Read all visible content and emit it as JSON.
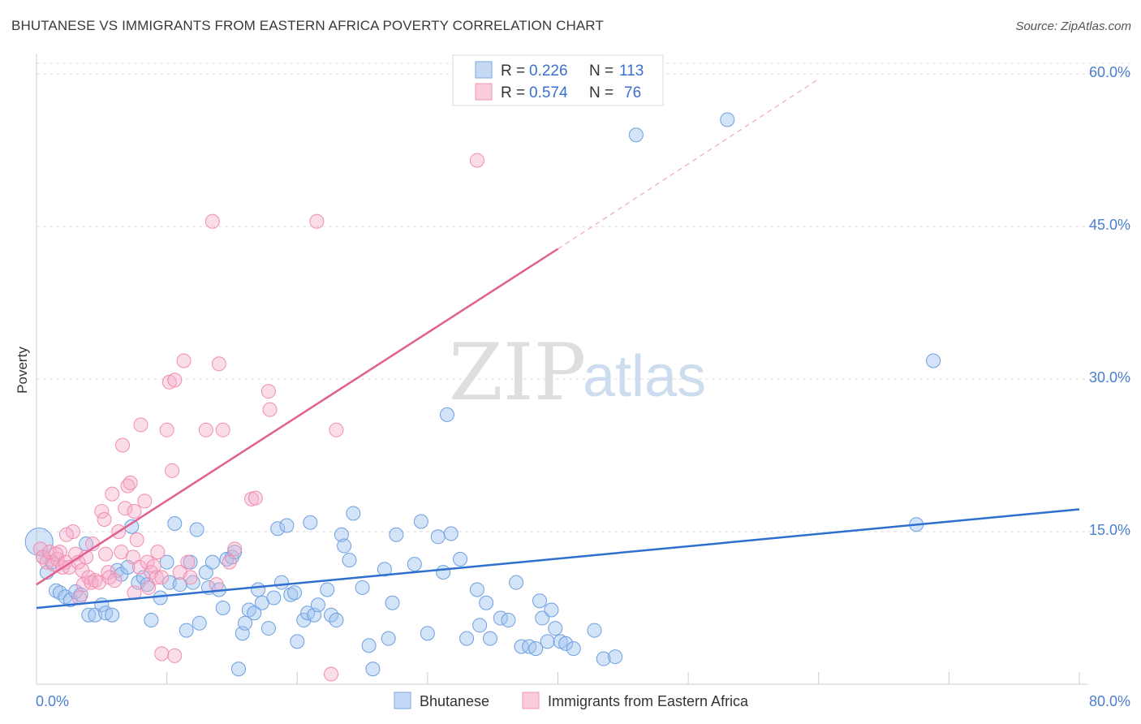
{
  "header": {
    "title": "BHUTANESE VS IMMIGRANTS FROM EASTERN AFRICA POVERTY CORRELATION CHART",
    "source": "Source: ZipAtlas.com"
  },
  "watermark": {
    "zip": "ZIP",
    "atlas": "atlas"
  },
  "legend": {
    "rows": [
      {
        "r_label": "R =",
        "r_value": "0.226",
        "n_label": "N =",
        "n_value": "113",
        "color": "#6d9fe0"
      },
      {
        "r_label": "R =",
        "r_value": "0.574",
        "n_label": "N =",
        "n_value": "76",
        "color": "#f08cb0"
      }
    ]
  },
  "bottom_legend": [
    {
      "label": "Bhutanese",
      "color": "#6d9fe0"
    },
    {
      "label": "Immigrants from Eastern Africa",
      "color": "#f08cb0"
    }
  ],
  "chart_data": {
    "type": "scatter",
    "ylabel": "Poverty",
    "xlabel": "",
    "xlim": [
      0,
      80
    ],
    "ylim": [
      0,
      62
    ],
    "x_ticks": [
      "0.0%",
      "80.0%"
    ],
    "y_ticks": [
      {
        "value": 15,
        "label": "15.0%"
      },
      {
        "value": 30,
        "label": "30.0%"
      },
      {
        "value": 45,
        "label": "45.0%"
      },
      {
        "value": 60,
        "label": "60.0%"
      }
    ],
    "grid": true,
    "series": [
      {
        "name": "Bhutanese",
        "color": "#6d9fe0",
        "trend": {
          "x0": 0,
          "y0": 7.5,
          "x1": 80,
          "y1": 17.2
        },
        "points": [
          [
            0.2,
            14.0
          ],
          [
            0.5,
            12.5
          ],
          [
            0.8,
            11.0
          ],
          [
            1.2,
            12.0
          ],
          [
            1.5,
            9.2
          ],
          [
            1.8,
            9.0
          ],
          [
            2.2,
            8.6
          ],
          [
            2.6,
            8.3
          ],
          [
            3.0,
            9.1
          ],
          [
            3.4,
            8.8
          ],
          [
            3.8,
            13.8
          ],
          [
            4.0,
            6.8
          ],
          [
            4.5,
            6.8
          ],
          [
            5.0,
            7.8
          ],
          [
            5.3,
            7.0
          ],
          [
            5.8,
            6.8
          ],
          [
            6.2,
            11.2
          ],
          [
            6.5,
            10.8
          ],
          [
            7.0,
            11.5
          ],
          [
            7.3,
            15.5
          ],
          [
            7.8,
            10.0
          ],
          [
            8.2,
            10.5
          ],
          [
            8.5,
            9.8
          ],
          [
            8.8,
            6.3
          ],
          [
            9.5,
            8.5
          ],
          [
            10.0,
            12.0
          ],
          [
            10.2,
            10.0
          ],
          [
            10.6,
            15.8
          ],
          [
            11.0,
            9.8
          ],
          [
            11.5,
            5.3
          ],
          [
            11.8,
            12.0
          ],
          [
            12.0,
            10.0
          ],
          [
            12.3,
            15.2
          ],
          [
            12.5,
            6.0
          ],
          [
            13.0,
            11.0
          ],
          [
            13.2,
            9.5
          ],
          [
            13.5,
            12.0
          ],
          [
            14.0,
            9.3
          ],
          [
            14.3,
            7.5
          ],
          [
            14.6,
            12.3
          ],
          [
            15.0,
            12.5
          ],
          [
            15.2,
            13.0
          ],
          [
            15.5,
            1.5
          ],
          [
            15.8,
            5.0
          ],
          [
            16.0,
            6.0
          ],
          [
            16.3,
            7.3
          ],
          [
            16.7,
            7.0
          ],
          [
            17.0,
            9.3
          ],
          [
            17.3,
            8.0
          ],
          [
            17.8,
            5.5
          ],
          [
            18.2,
            8.5
          ],
          [
            18.5,
            15.3
          ],
          [
            18.8,
            10.0
          ],
          [
            19.2,
            15.6
          ],
          [
            19.5,
            8.8
          ],
          [
            19.8,
            9.0
          ],
          [
            20.0,
            4.2
          ],
          [
            20.5,
            6.3
          ],
          [
            20.8,
            7.0
          ],
          [
            21.0,
            15.9
          ],
          [
            21.3,
            6.8
          ],
          [
            21.6,
            7.8
          ],
          [
            22.3,
            9.3
          ],
          [
            22.6,
            6.8
          ],
          [
            23.0,
            6.3
          ],
          [
            23.4,
            14.7
          ],
          [
            23.6,
            13.6
          ],
          [
            24.0,
            12.2
          ],
          [
            24.3,
            16.8
          ],
          [
            25.0,
            9.5
          ],
          [
            25.5,
            3.8
          ],
          [
            25.8,
            1.5
          ],
          [
            26.7,
            11.3
          ],
          [
            27.0,
            4.5
          ],
          [
            27.3,
            8.0
          ],
          [
            27.6,
            14.7
          ],
          [
            29.5,
            16.0
          ],
          [
            29.0,
            11.8
          ],
          [
            30.0,
            5.0
          ],
          [
            30.8,
            14.5
          ],
          [
            31.2,
            11.0
          ],
          [
            31.5,
            26.5
          ],
          [
            31.8,
            14.8
          ],
          [
            32.5,
            12.3
          ],
          [
            33.0,
            4.5
          ],
          [
            33.8,
            9.3
          ],
          [
            34.0,
            5.8
          ],
          [
            34.5,
            8.0
          ],
          [
            34.8,
            4.5
          ],
          [
            35.6,
            6.5
          ],
          [
            36.2,
            6.3
          ],
          [
            36.8,
            10.0
          ],
          [
            37.2,
            3.7
          ],
          [
            37.8,
            3.7
          ],
          [
            38.3,
            3.5
          ],
          [
            38.6,
            8.2
          ],
          [
            38.8,
            6.5
          ],
          [
            39.2,
            4.2
          ],
          [
            39.5,
            7.3
          ],
          [
            39.8,
            5.5
          ],
          [
            40.2,
            4.2
          ],
          [
            40.6,
            4.0
          ],
          [
            41.2,
            3.5
          ],
          [
            42.8,
            5.3
          ],
          [
            43.5,
            2.5
          ],
          [
            44.4,
            2.7
          ],
          [
            46.0,
            54.0
          ],
          [
            53.0,
            55.5
          ],
          [
            68.8,
            31.8
          ],
          [
            67.5,
            15.7
          ]
        ]
      },
      {
        "name": "Immigrants from Eastern Africa",
        "color": "#f08cb0",
        "trend": {
          "x0": 0,
          "y0": 9.8,
          "x1": 40,
          "y1": 42.8
        },
        "trend_dashed": {
          "x0": 40,
          "y0": 42.8,
          "x1": 60,
          "y1": 59.5
        },
        "points": [
          [
            0.3,
            13.3
          ],
          [
            0.5,
            12.5
          ],
          [
            0.8,
            12.0
          ],
          [
            1.0,
            13.0
          ],
          [
            1.3,
            11.8
          ],
          [
            1.6,
            12.3
          ],
          [
            1.8,
            13.0
          ],
          [
            2.0,
            11.5
          ],
          [
            2.2,
            12.0
          ],
          [
            2.5,
            11.5
          ],
          [
            2.8,
            15.0
          ],
          [
            3.0,
            12.8
          ],
          [
            3.2,
            12.0
          ],
          [
            3.5,
            11.2
          ],
          [
            3.6,
            9.8
          ],
          [
            3.8,
            12.5
          ],
          [
            4.0,
            10.5
          ],
          [
            4.2,
            10.0
          ],
          [
            4.3,
            13.8
          ],
          [
            4.5,
            10.2
          ],
          [
            4.8,
            10.0
          ],
          [
            5.0,
            17.0
          ],
          [
            5.2,
            16.2
          ],
          [
            5.5,
            11.0
          ],
          [
            5.6,
            10.5
          ],
          [
            5.8,
            18.7
          ],
          [
            6.0,
            10.2
          ],
          [
            6.3,
            15.0
          ],
          [
            6.5,
            13.0
          ],
          [
            6.6,
            23.5
          ],
          [
            6.8,
            17.3
          ],
          [
            7.0,
            19.5
          ],
          [
            7.2,
            19.8
          ],
          [
            7.4,
            12.5
          ],
          [
            7.5,
            17.0
          ],
          [
            7.7,
            14.2
          ],
          [
            7.9,
            11.5
          ],
          [
            8.0,
            25.5
          ],
          [
            8.3,
            18.0
          ],
          [
            8.5,
            12.0
          ],
          [
            8.6,
            9.5
          ],
          [
            8.8,
            11.0
          ],
          [
            9.0,
            11.6
          ],
          [
            9.2,
            10.5
          ],
          [
            9.3,
            13.0
          ],
          [
            9.6,
            10.5
          ],
          [
            10.0,
            25.0
          ],
          [
            10.2,
            29.7
          ],
          [
            10.4,
            21.0
          ],
          [
            10.6,
            29.9
          ],
          [
            11.0,
            11.0
          ],
          [
            11.3,
            31.8
          ],
          [
            11.8,
            10.5
          ],
          [
            13.0,
            25.0
          ],
          [
            13.5,
            45.5
          ],
          [
            14.0,
            31.5
          ],
          [
            14.3,
            25.0
          ],
          [
            15.2,
            13.3
          ],
          [
            14.8,
            12.0
          ],
          [
            16.5,
            18.2
          ],
          [
            16.8,
            18.3
          ],
          [
            17.8,
            28.8
          ],
          [
            17.9,
            27.0
          ],
          [
            21.5,
            45.5
          ],
          [
            22.6,
            1.0
          ],
          [
            23.0,
            25.0
          ],
          [
            33.8,
            51.5
          ],
          [
            9.6,
            3.0
          ],
          [
            10.6,
            2.8
          ],
          [
            7.5,
            9.0
          ],
          [
            5.3,
            12.8
          ],
          [
            3.3,
            8.5
          ],
          [
            1.5,
            12.8
          ],
          [
            2.3,
            14.7
          ],
          [
            11.6,
            12.0
          ],
          [
            13.8,
            9.8
          ]
        ]
      }
    ]
  }
}
